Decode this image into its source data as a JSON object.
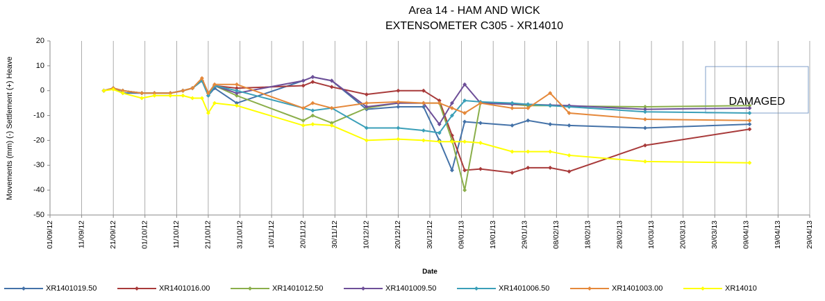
{
  "chart_data": {
    "type": "line",
    "title": [
      "Area 14 - HAM AND WICK",
      "EXTENSOMETER C305 - XR14010"
    ],
    "annotation": "DAMAGED",
    "xlabel": "Date",
    "ylabel": "Movements (mm) (-) Settlement (+) Heave",
    "grid": "x",
    "legend": "bottom",
    "x": [
      "2012-09-18",
      "2012-09-21",
      "2012-09-24",
      "2012-09-30",
      "2012-10-04",
      "2012-10-09",
      "2012-10-13",
      "2012-10-16",
      "2012-10-19",
      "2012-10-21",
      "2012-10-23",
      "2012-10-30",
      "2012-11-20",
      "2012-11-23",
      "2012-11-29",
      "2012-12-10",
      "2012-12-20",
      "2012-12-28",
      "2013-01-02",
      "2013-01-06",
      "2013-01-10",
      "2013-01-15",
      "2013-01-25",
      "2013-01-30",
      "2013-02-06",
      "2013-02-12",
      "2013-03-08",
      "2013-04-10"
    ],
    "series": [
      {
        "name": "XR1401019.50",
        "color": "#4472a8",
        "values": [
          0,
          1,
          -1,
          -1,
          -1,
          -1,
          0,
          1,
          4,
          -2,
          1,
          -5,
          4,
          5.5,
          4,
          -7.5,
          -6.5,
          -6.5,
          -20,
          -32,
          -12.5,
          -13,
          -14,
          -12,
          -13.5,
          -14,
          -15,
          -13.5
        ]
      },
      {
        "name": "XR1401016.00",
        "color": "#a83a3a",
        "values": [
          0,
          1,
          0,
          -1,
          -1,
          -1,
          0,
          1,
          4,
          -1,
          2,
          1,
          2,
          3.5,
          1.5,
          -1.5,
          0,
          0,
          -4,
          -18,
          -32,
          -31.5,
          -33,
          -31,
          -31,
          -32.5,
          -22,
          -15.5
        ]
      },
      {
        "name": "XR1401012.50",
        "color": "#8aae4a",
        "values": [
          0,
          1,
          0,
          -1,
          -1,
          -1,
          0,
          1,
          4,
          -1,
          2,
          -2,
          -12,
          -10,
          -13,
          -7,
          -5,
          -5,
          -5,
          -20,
          -40,
          -5,
          -5.5,
          -6,
          -6,
          -6.2,
          -6.5,
          -6
        ]
      },
      {
        "name": "XR1401009.50",
        "color": "#6e4f98",
        "values": [
          0,
          1,
          0,
          -1,
          -1,
          -1,
          0,
          1,
          4,
          -1,
          2,
          -1,
          4,
          5.5,
          4,
          -6.5,
          -5,
          -5,
          -13.5,
          -5,
          2.5,
          -5,
          -5.5,
          -5.5,
          -5.8,
          -6,
          -7.5,
          -7
        ]
      },
      {
        "name": "XR1401006.50",
        "color": "#3a9fb8",
        "values": [
          0,
          1,
          0,
          -1,
          -1,
          -1,
          0,
          1,
          4,
          -2,
          2,
          0,
          -7,
          -8,
          -7,
          -15,
          -15,
          -16,
          -17,
          -10,
          -4,
          -4.5,
          -5,
          -5.5,
          -6,
          -6.5,
          -8.5,
          -9
        ]
      },
      {
        "name": "XR1401003.00",
        "color": "#e5883a",
        "values": [
          0,
          1,
          0,
          -1,
          -1,
          -1,
          0,
          1,
          5,
          -1,
          2.5,
          2.5,
          -7,
          -5,
          -7,
          -5,
          -4.5,
          -5,
          -5,
          -7,
          -9,
          -5,
          -7,
          -7,
          -1,
          -9,
          -11.5,
          -12
        ]
      },
      {
        "name": "XR14010",
        "color": "#ffff00",
        "values": [
          0,
          0.5,
          -1,
          -3,
          -2,
          -2,
          -2,
          -3,
          -3,
          -9,
          -5,
          -6,
          -14,
          -13.5,
          -14,
          -20,
          -19.5,
          -20,
          -20.5,
          -20.5,
          -20.5,
          -21,
          -24.5,
          -24.5,
          -24.5,
          -26,
          -28.5,
          -29
        ]
      }
    ],
    "xlim": [
      "2012-09-01",
      "2013-04-29"
    ],
    "xticks": [
      {
        "value": "2012-09-01",
        "label": "01/09/12"
      },
      {
        "value": "2012-09-11",
        "label": "11/09/12"
      },
      {
        "value": "2012-09-21",
        "label": "21/09/12"
      },
      {
        "value": "2012-10-01",
        "label": "01/10/12"
      },
      {
        "value": "2012-10-11",
        "label": "11/10/12"
      },
      {
        "value": "2012-10-21",
        "label": "21/10/12"
      },
      {
        "value": "2012-10-31",
        "label": "31/10/12"
      },
      {
        "value": "2012-11-10",
        "label": "10/11/12"
      },
      {
        "value": "2012-11-20",
        "label": "20/11/12"
      },
      {
        "value": "2012-11-30",
        "label": "30/11/12"
      },
      {
        "value": "2012-12-10",
        "label": "10/12/12"
      },
      {
        "value": "2012-12-20",
        "label": "20/12/12"
      },
      {
        "value": "2012-12-30",
        "label": "30/12/12"
      },
      {
        "value": "2013-01-09",
        "label": "09/01/13"
      },
      {
        "value": "2013-01-19",
        "label": "19/01/13"
      },
      {
        "value": "2013-01-29",
        "label": "29/01/13"
      },
      {
        "value": "2013-02-08",
        "label": "08/02/13"
      },
      {
        "value": "2013-02-18",
        "label": "18/02/13"
      },
      {
        "value": "2013-02-28",
        "label": "28/02/13"
      },
      {
        "value": "2013-03-10",
        "label": "10/03/13"
      },
      {
        "value": "2013-03-20",
        "label": "20/03/13"
      },
      {
        "value": "2013-03-30",
        "label": "30/03/13"
      },
      {
        "value": "2013-04-09",
        "label": "09/04/13"
      },
      {
        "value": "2013-04-19",
        "label": "19/04/13"
      },
      {
        "value": "2013-04-29",
        "label": "29/04/13"
      }
    ],
    "ylim": [
      -50,
      20
    ],
    "yticks": [
      -50,
      -40,
      -30,
      -20,
      -10,
      0,
      10,
      20
    ]
  }
}
